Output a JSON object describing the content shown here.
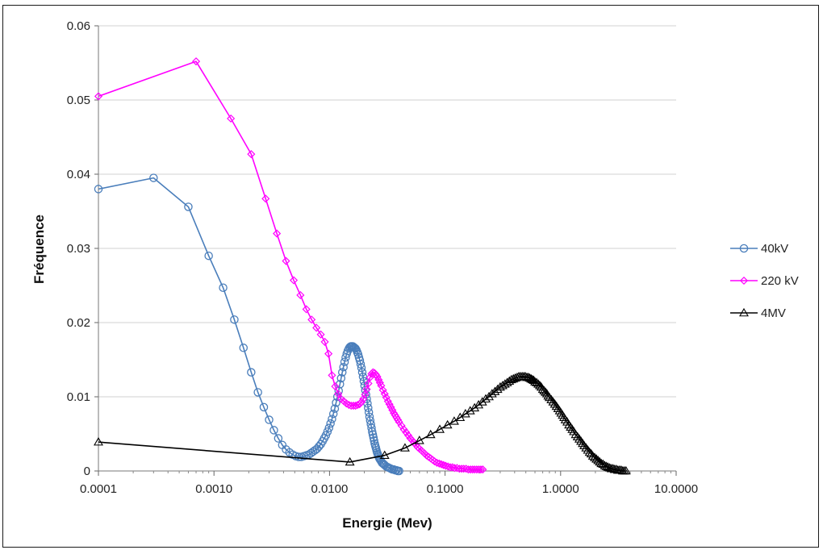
{
  "chart_data": {
    "type": "scatter",
    "title": "",
    "xlabel": "Energie (Mev)",
    "ylabel": "Fréquence",
    "xscale": "log",
    "xlim": [
      0.0001,
      10
    ],
    "ylim": [
      0,
      0.06
    ],
    "grid": "horizontal",
    "legend_position": "right",
    "x_tick_labels": [
      "0.0001",
      "0.0010",
      "0.0100",
      "0.1000",
      "1.0000",
      "10.0000"
    ],
    "x_tick_values": [
      0.0001,
      0.001,
      0.01,
      0.1,
      1,
      10
    ],
    "y_tick_labels": [
      "0",
      "0.01",
      "0.02",
      "0.03",
      "0.04",
      "0.05",
      "0.06"
    ],
    "y_tick_values": [
      0,
      0.01,
      0.02,
      0.03,
      0.04,
      0.05,
      0.06
    ],
    "series": [
      {
        "name": "40kV",
        "color": "#4a7ebb",
        "marker": "circle",
        "points": [
          [
            0.0001,
            0.038
          ],
          [
            0.0003,
            0.0395
          ],
          [
            0.0006,
            0.0356
          ],
          [
            0.0009,
            0.029
          ],
          [
            0.0012,
            0.0247
          ],
          [
            0.0015,
            0.0204
          ],
          [
            0.0018,
            0.0166
          ],
          [
            0.0021,
            0.0133
          ],
          [
            0.0024,
            0.0106
          ],
          [
            0.0027,
            0.0086
          ],
          [
            0.003,
            0.0069
          ],
          [
            0.0033,
            0.0055
          ],
          [
            0.0036,
            0.0044
          ],
          [
            0.0039,
            0.0035
          ],
          [
            0.0042,
            0.0029
          ],
          [
            0.0045,
            0.0025
          ],
          [
            0.0048,
            0.0022
          ],
          [
            0.0051,
            0.002
          ],
          [
            0.0054,
            0.0019
          ],
          [
            0.0057,
            0.0019
          ],
          [
            0.006,
            0.002
          ],
          [
            0.0063,
            0.0021
          ],
          [
            0.0066,
            0.0022
          ],
          [
            0.0069,
            0.0024
          ],
          [
            0.0072,
            0.0026
          ],
          [
            0.0075,
            0.0028
          ],
          [
            0.0078,
            0.003
          ],
          [
            0.0081,
            0.0033
          ],
          [
            0.0084,
            0.0036
          ],
          [
            0.0087,
            0.004
          ],
          [
            0.009,
            0.0044
          ],
          [
            0.0093,
            0.0048
          ],
          [
            0.0096,
            0.0053
          ],
          [
            0.0099,
            0.0058
          ],
          [
            0.0102,
            0.0064
          ],
          [
            0.0105,
            0.007
          ],
          [
            0.0108,
            0.0077
          ],
          [
            0.0111,
            0.0084
          ],
          [
            0.0114,
            0.0092
          ],
          [
            0.0117,
            0.01
          ],
          [
            0.012,
            0.0108
          ],
          [
            0.0123,
            0.0117
          ],
          [
            0.0126,
            0.0125
          ],
          [
            0.0129,
            0.0133
          ],
          [
            0.0132,
            0.014
          ],
          [
            0.0135,
            0.0147
          ],
          [
            0.0138,
            0.0153
          ],
          [
            0.0141,
            0.0158
          ],
          [
            0.0144,
            0.0162
          ],
          [
            0.0147,
            0.0165
          ],
          [
            0.015,
            0.0167
          ],
          [
            0.0153,
            0.0168
          ],
          [
            0.0156,
            0.0168
          ],
          [
            0.0159,
            0.0168
          ],
          [
            0.0162,
            0.0167
          ],
          [
            0.0165,
            0.0166
          ],
          [
            0.0168,
            0.0165
          ],
          [
            0.0171,
            0.0163
          ],
          [
            0.0174,
            0.016
          ],
          [
            0.0177,
            0.0157
          ],
          [
            0.018,
            0.0153
          ],
          [
            0.0183,
            0.0149
          ],
          [
            0.0186,
            0.0144
          ],
          [
            0.0189,
            0.0139
          ],
          [
            0.0192,
            0.0133
          ],
          [
            0.0195,
            0.0127
          ],
          [
            0.0198,
            0.0121
          ],
          [
            0.0201,
            0.0115
          ],
          [
            0.0204,
            0.0109
          ],
          [
            0.0207,
            0.0103
          ],
          [
            0.021,
            0.0097
          ],
          [
            0.0213,
            0.0091
          ],
          [
            0.0216,
            0.0085
          ],
          [
            0.0219,
            0.0079
          ],
          [
            0.0222,
            0.0073
          ],
          [
            0.0225,
            0.0068
          ],
          [
            0.0228,
            0.0063
          ],
          [
            0.0231,
            0.0058
          ],
          [
            0.0234,
            0.0053
          ],
          [
            0.0237,
            0.0049
          ],
          [
            0.024,
            0.0045
          ],
          [
            0.0243,
            0.0041
          ],
          [
            0.0246,
            0.0037
          ],
          [
            0.0249,
            0.0034
          ],
          [
            0.0252,
            0.0031
          ],
          [
            0.0255,
            0.0028
          ],
          [
            0.0258,
            0.0025
          ],
          [
            0.0261,
            0.0023
          ],
          [
            0.0264,
            0.0021
          ],
          [
            0.0267,
            0.0019
          ],
          [
            0.027,
            0.0017
          ],
          [
            0.0275,
            0.0015
          ],
          [
            0.028,
            0.0013
          ],
          [
            0.0285,
            0.0011
          ],
          [
            0.029,
            0.001
          ],
          [
            0.0295,
            0.0009
          ],
          [
            0.03,
            0.0008
          ],
          [
            0.031,
            0.0006
          ],
          [
            0.032,
            0.0005
          ],
          [
            0.033,
            0.0004
          ],
          [
            0.034,
            0.0003
          ],
          [
            0.035,
            0.0002
          ],
          [
            0.036,
            0.0002
          ],
          [
            0.037,
            0.0001
          ],
          [
            0.038,
            0.0001
          ],
          [
            0.039,
            0.0
          ],
          [
            0.04,
            0.0
          ]
        ]
      },
      {
        "name": "220 kV",
        "color": "#ff00ff",
        "marker": "diamond",
        "points": [
          [
            0.0001,
            0.0505
          ],
          [
            0.0007,
            0.0552
          ],
          [
            0.0014,
            0.0475
          ],
          [
            0.0021,
            0.0427
          ],
          [
            0.0028,
            0.0367
          ],
          [
            0.0035,
            0.032
          ],
          [
            0.0042,
            0.0283
          ],
          [
            0.0049,
            0.0257
          ],
          [
            0.0056,
            0.0237
          ],
          [
            0.0063,
            0.0218
          ],
          [
            0.007,
            0.0204
          ],
          [
            0.0077,
            0.0193
          ],
          [
            0.0084,
            0.0184
          ],
          [
            0.0091,
            0.0174
          ],
          [
            0.0098,
            0.0158
          ],
          [
            0.0105,
            0.0129
          ],
          [
            0.0112,
            0.0114
          ],
          [
            0.0119,
            0.0104
          ],
          [
            0.0126,
            0.0097
          ],
          [
            0.0133,
            0.0094
          ],
          [
            0.014,
            0.0091
          ],
          [
            0.0147,
            0.0089
          ],
          [
            0.0154,
            0.0088
          ],
          [
            0.0161,
            0.0088
          ],
          [
            0.0168,
            0.0088
          ],
          [
            0.0175,
            0.0089
          ],
          [
            0.0182,
            0.009
          ],
          [
            0.0189,
            0.0093
          ],
          [
            0.0196,
            0.0097
          ],
          [
            0.0203,
            0.0103
          ],
          [
            0.021,
            0.011
          ],
          [
            0.0217,
            0.0118
          ],
          [
            0.0224,
            0.0126
          ],
          [
            0.0231,
            0.0131
          ],
          [
            0.0238,
            0.0133
          ],
          [
            0.0245,
            0.0132
          ],
          [
            0.0252,
            0.013
          ],
          [
            0.0259,
            0.0127
          ],
          [
            0.0266,
            0.0123
          ],
          [
            0.0273,
            0.0119
          ],
          [
            0.028,
            0.0115
          ],
          [
            0.029,
            0.0109
          ],
          [
            0.03,
            0.0104
          ],
          [
            0.031,
            0.0099
          ],
          [
            0.032,
            0.0094
          ],
          [
            0.033,
            0.009
          ],
          [
            0.034,
            0.0086
          ],
          [
            0.035,
            0.0082
          ],
          [
            0.036,
            0.0078
          ],
          [
            0.037,
            0.0075
          ],
          [
            0.038,
            0.0072
          ],
          [
            0.039,
            0.0069
          ],
          [
            0.04,
            0.0066
          ],
          [
            0.042,
            0.0061
          ],
          [
            0.044,
            0.0056
          ],
          [
            0.046,
            0.0052
          ],
          [
            0.048,
            0.0048
          ],
          [
            0.05,
            0.0044
          ],
          [
            0.052,
            0.0041
          ],
          [
            0.054,
            0.0038
          ],
          [
            0.056,
            0.0035
          ],
          [
            0.058,
            0.0032
          ],
          [
            0.06,
            0.003
          ],
          [
            0.063,
            0.0027
          ],
          [
            0.066,
            0.0024
          ],
          [
            0.069,
            0.0021
          ],
          [
            0.072,
            0.0019
          ],
          [
            0.075,
            0.0017
          ],
          [
            0.078,
            0.0015
          ],
          [
            0.081,
            0.0013
          ],
          [
            0.085,
            0.0011
          ],
          [
            0.089,
            0.001
          ],
          [
            0.093,
            0.0009
          ],
          [
            0.097,
            0.0008
          ],
          [
            0.101,
            0.0007
          ],
          [
            0.106,
            0.0006
          ],
          [
            0.111,
            0.0005
          ],
          [
            0.116,
            0.0005
          ],
          [
            0.121,
            0.0004
          ],
          [
            0.127,
            0.0004
          ],
          [
            0.133,
            0.0003
          ],
          [
            0.139,
            0.0003
          ],
          [
            0.145,
            0.0003
          ],
          [
            0.152,
            0.0003
          ],
          [
            0.159,
            0.0002
          ],
          [
            0.166,
            0.0002
          ],
          [
            0.173,
            0.0002
          ],
          [
            0.18,
            0.0002
          ],
          [
            0.188,
            0.0002
          ],
          [
            0.196,
            0.0002
          ],
          [
            0.204,
            0.0002
          ],
          [
            0.212,
            0.0002
          ]
        ]
      },
      {
        "name": "4MV",
        "color": "#000000",
        "marker": "triangle",
        "points": [
          [
            0.0001,
            0.0039
          ],
          [
            0.015,
            0.0012
          ],
          [
            0.03,
            0.0021
          ],
          [
            0.045,
            0.0031
          ],
          [
            0.06,
            0.0041
          ],
          [
            0.075,
            0.0049
          ],
          [
            0.09,
            0.0056
          ],
          [
            0.105,
            0.0062
          ],
          [
            0.12,
            0.0067
          ],
          [
            0.135,
            0.0072
          ],
          [
            0.15,
            0.0077
          ],
          [
            0.165,
            0.0081
          ],
          [
            0.18,
            0.0085
          ],
          [
            0.195,
            0.0089
          ],
          [
            0.21,
            0.0093
          ],
          [
            0.225,
            0.0097
          ],
          [
            0.24,
            0.01
          ],
          [
            0.255,
            0.0104
          ],
          [
            0.27,
            0.0107
          ],
          [
            0.285,
            0.011
          ],
          [
            0.3,
            0.0113
          ],
          [
            0.315,
            0.0115
          ],
          [
            0.33,
            0.0117
          ],
          [
            0.345,
            0.0119
          ],
          [
            0.36,
            0.0121
          ],
          [
            0.375,
            0.0123
          ],
          [
            0.39,
            0.0124
          ],
          [
            0.405,
            0.0125
          ],
          [
            0.42,
            0.0126
          ],
          [
            0.435,
            0.0127
          ],
          [
            0.45,
            0.0127
          ],
          [
            0.465,
            0.0127
          ],
          [
            0.48,
            0.0127
          ],
          [
            0.495,
            0.0127
          ],
          [
            0.51,
            0.0126
          ],
          [
            0.525,
            0.0126
          ],
          [
            0.54,
            0.0125
          ],
          [
            0.555,
            0.0124
          ],
          [
            0.57,
            0.0123
          ],
          [
            0.585,
            0.0122
          ],
          [
            0.6,
            0.012
          ],
          [
            0.62,
            0.0119
          ],
          [
            0.64,
            0.0117
          ],
          [
            0.66,
            0.0115
          ],
          [
            0.68,
            0.0113
          ],
          [
            0.7,
            0.011
          ],
          [
            0.72,
            0.0108
          ],
          [
            0.74,
            0.0106
          ],
          [
            0.76,
            0.0104
          ],
          [
            0.78,
            0.0101
          ],
          [
            0.8,
            0.0099
          ],
          [
            0.83,
            0.0096
          ],
          [
            0.86,
            0.0093
          ],
          [
            0.89,
            0.009
          ],
          [
            0.92,
            0.0087
          ],
          [
            0.95,
            0.0084
          ],
          [
            0.98,
            0.0081
          ],
          [
            1.01,
            0.0078
          ],
          [
            1.04,
            0.0075
          ],
          [
            1.07,
            0.0072
          ],
          [
            1.1,
            0.0069
          ],
          [
            1.14,
            0.0066
          ],
          [
            1.18,
            0.0062
          ],
          [
            1.22,
            0.0059
          ],
          [
            1.26,
            0.0056
          ],
          [
            1.3,
            0.0053
          ],
          [
            1.35,
            0.0049
          ],
          [
            1.4,
            0.0046
          ],
          [
            1.45,
            0.0043
          ],
          [
            1.5,
            0.004
          ],
          [
            1.55,
            0.0037
          ],
          [
            1.6,
            0.0034
          ],
          [
            1.66,
            0.0031
          ],
          [
            1.72,
            0.0028
          ],
          [
            1.78,
            0.0025
          ],
          [
            1.84,
            0.0023
          ],
          [
            1.9,
            0.002
          ],
          [
            1.97,
            0.0018
          ],
          [
            2.04,
            0.0016
          ],
          [
            2.11,
            0.0014
          ],
          [
            2.18,
            0.0012
          ],
          [
            2.25,
            0.001
          ],
          [
            2.33,
            0.0009
          ],
          [
            2.41,
            0.0007
          ],
          [
            2.49,
            0.0006
          ],
          [
            2.57,
            0.0005
          ],
          [
            2.66,
            0.0004
          ],
          [
            2.75,
            0.0003
          ],
          [
            2.84,
            0.0003
          ],
          [
            2.93,
            0.0002
          ],
          [
            3.03,
            0.0002
          ],
          [
            3.13,
            0.0001
          ],
          [
            3.23,
            0.0001
          ],
          [
            3.34,
            0.0001
          ],
          [
            3.45,
            0.0
          ],
          [
            3.56,
            0.0
          ],
          [
            3.68,
            0.0
          ]
        ]
      }
    ]
  }
}
